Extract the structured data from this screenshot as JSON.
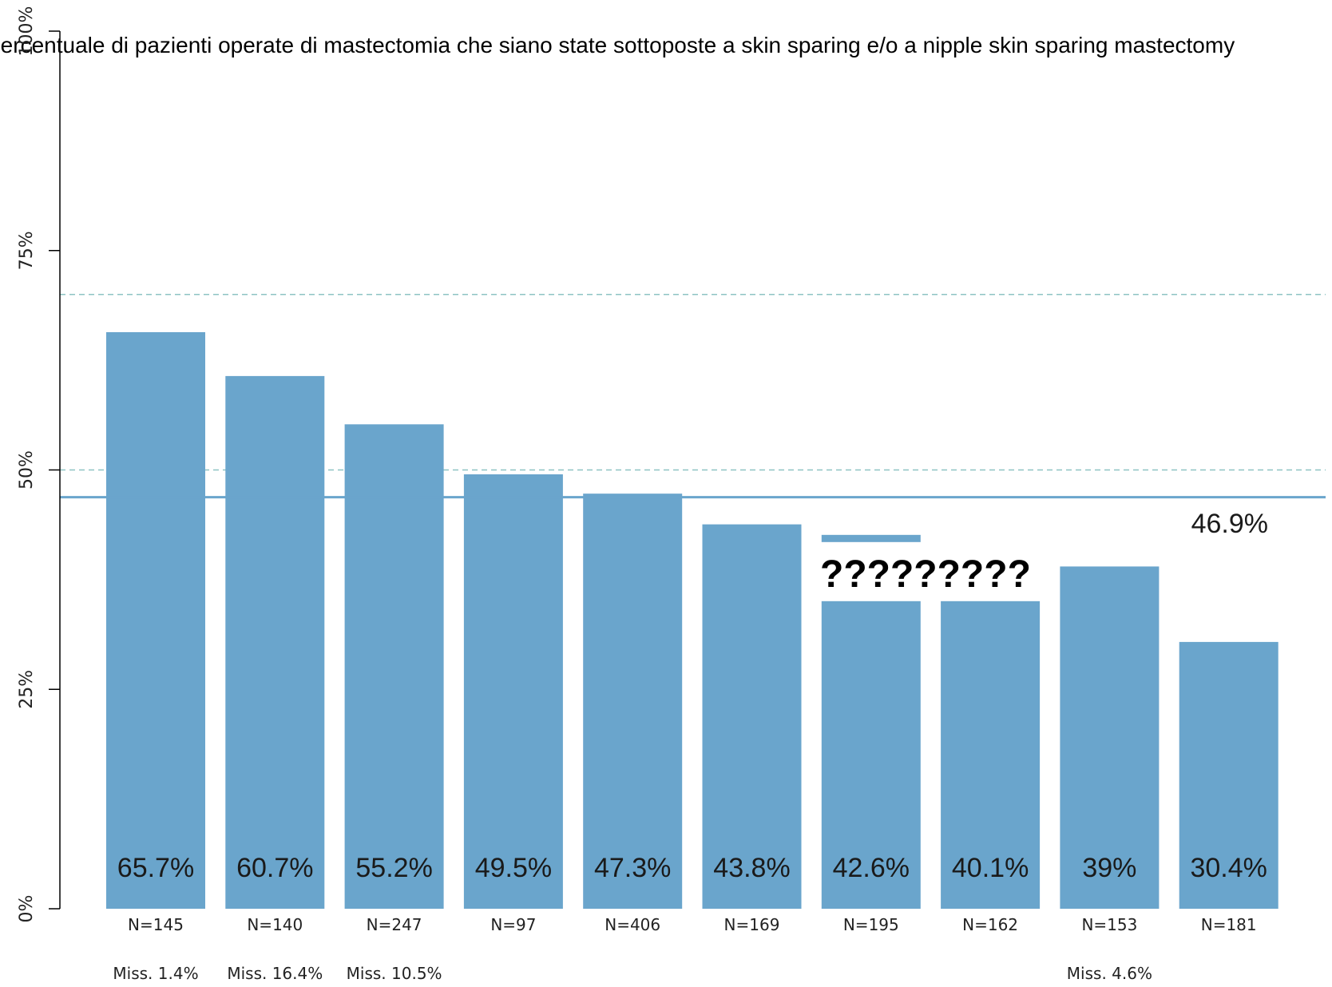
{
  "chart_data": {
    "type": "bar",
    "title": "Percentuale di pazienti operate di mastectomia che siano state sottoposte a skin sparing e/o a nipple skin sparing mastectomy",
    "ylabel": "",
    "xlabel": "",
    "ylim": [
      0,
      100
    ],
    "yticks": [
      {
        "value": 0,
        "label": "0%"
      },
      {
        "value": 25,
        "label": "25%"
      },
      {
        "value": 50,
        "label": "50%"
      },
      {
        "value": 75,
        "label": "75%"
      },
      {
        "value": 100,
        "label": "100%"
      }
    ],
    "bars": [
      {
        "value": 65.7,
        "label": "65.7%",
        "n": "N=145",
        "miss": "Miss. 1.4%"
      },
      {
        "value": 60.7,
        "label": "60.7%",
        "n": "N=140",
        "miss": "Miss. 16.4%"
      },
      {
        "value": 55.2,
        "label": "55.2%",
        "n": "N=247",
        "miss": "Miss. 10.5%"
      },
      {
        "value": 49.5,
        "label": "49.5%",
        "n": "N=97",
        "miss": ""
      },
      {
        "value": 47.3,
        "label": "47.3%",
        "n": "N=406",
        "miss": ""
      },
      {
        "value": 43.8,
        "label": "43.8%",
        "n": "N=169",
        "miss": ""
      },
      {
        "value": 42.6,
        "label": "42.6%",
        "n": "N=195",
        "miss": ""
      },
      {
        "value": 40.1,
        "label": "40.1%",
        "n": "N=162",
        "miss": ""
      },
      {
        "value": 39.0,
        "label": "39%",
        "n": "N=153",
        "miss": "Miss. 4.6%"
      },
      {
        "value": 30.4,
        "label": "30.4%",
        "n": "N=181",
        "miss": ""
      }
    ],
    "average": {
      "value": 46.9,
      "label": "46.9%"
    },
    "reference_lines": [
      70,
      50
    ],
    "overlay_text": "?????????",
    "colors": {
      "bar": "#6aa5cc",
      "average_line": "#6aa5cc",
      "reference_line": "#8ec3c3",
      "axis": "#000000"
    },
    "grid": false,
    "legend": "none"
  }
}
